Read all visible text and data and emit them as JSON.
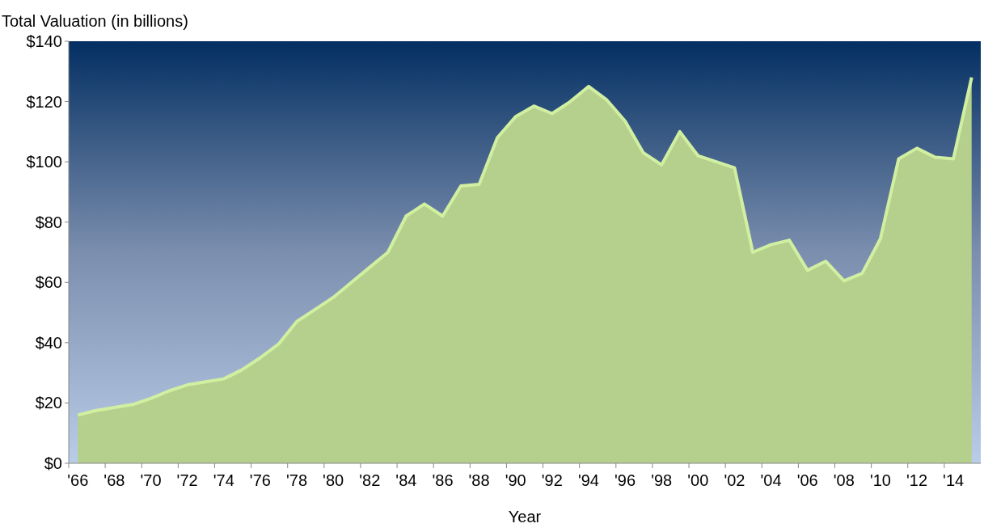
{
  "chart_data": {
    "type": "area",
    "ylabel": "Total Valuation (in billions)",
    "xlabel": "Year",
    "categories": [
      "'66",
      null,
      "'68",
      null,
      "'70",
      null,
      "'72",
      null,
      "'74",
      null,
      "'76",
      null,
      "'78",
      null,
      "'80",
      null,
      "'82",
      null,
      "'84",
      null,
      "'86",
      null,
      "'88",
      null,
      "'90",
      null,
      "'92",
      null,
      "'94",
      null,
      "'96",
      null,
      "'98",
      null,
      "'00",
      null,
      "'02",
      null,
      "'04",
      null,
      "'06",
      null,
      "'08",
      null,
      "'10",
      null,
      "'12",
      null,
      "'14",
      null
    ],
    "series": [
      {
        "color": "#b5cf8c",
        "values": [
          16,
          17.5,
          18.5,
          19.5,
          21.5,
          24,
          26,
          27,
          28,
          31,
          35,
          39.5,
          47,
          51,
          55,
          60,
          65,
          70,
          82,
          86,
          82,
          92,
          92.5,
          108,
          115,
          118.5,
          116,
          120,
          125,
          120.5,
          113.5,
          103,
          99,
          110,
          102,
          100,
          98,
          70,
          72.5,
          74,
          64,
          67,
          60.5,
          63,
          74.5,
          101,
          104.5,
          101.5,
          101,
          128
        ]
      }
    ],
    "ylim": [
      0,
      140
    ],
    "yticks": [
      {
        "value": 0,
        "label": "$0"
      },
      {
        "value": 20,
        "label": "$20"
      },
      {
        "value": 40,
        "label": "$40"
      },
      {
        "value": 60,
        "label": "$60"
      },
      {
        "value": 80,
        "label": "$80"
      },
      {
        "value": 100,
        "label": "$100"
      },
      {
        "value": 120,
        "label": "$120"
      },
      {
        "value": 140,
        "label": "$140"
      }
    ],
    "grid": false
  }
}
